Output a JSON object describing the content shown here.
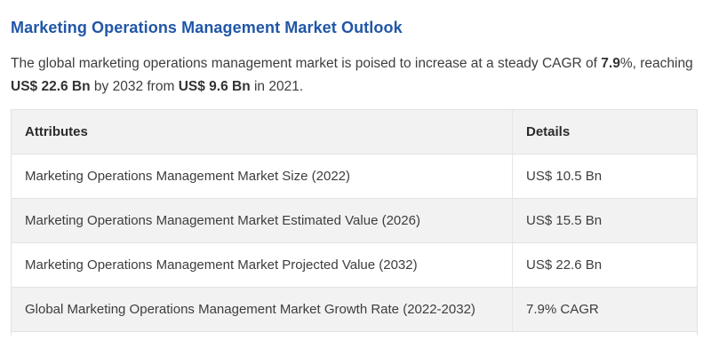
{
  "page": {
    "title": "Marketing Operations Management Market Outlook"
  },
  "intro": {
    "seg1": "The global marketing operations management market is poised to increase at a steady CAGR of ",
    "cagr_bold": "7.9",
    "seg2": "%, reaching ",
    "value_2032_bold": "US$ 22.6 Bn",
    "seg3": " by 2032 from ",
    "value_2021_bold": "US$ 9.6 Bn",
    "seg4": " in 2021."
  },
  "table": {
    "headers": {
      "attributes": "Attributes",
      "details": "Details"
    },
    "rows": [
      {
        "attribute": "Marketing Operations Management Market Size (2022)",
        "detail": "US$ 10.5 Bn"
      },
      {
        "attribute": "Marketing Operations Management Market Estimated Value (2026)",
        "detail": "US$ 15.5 Bn"
      },
      {
        "attribute": "Marketing Operations Management Market Projected Value (2032)",
        "detail": "US$ 22.6 Bn"
      },
      {
        "attribute": "Global Marketing Operations Management Market Growth Rate (2022-2032)",
        "detail": "7.9% CAGR"
      }
    ]
  },
  "colors": {
    "title_blue": "#2156a8",
    "row_alt_gray": "#f2f2f2",
    "border_gray": "#e2e2e2",
    "body_text": "#3d3d3d"
  }
}
